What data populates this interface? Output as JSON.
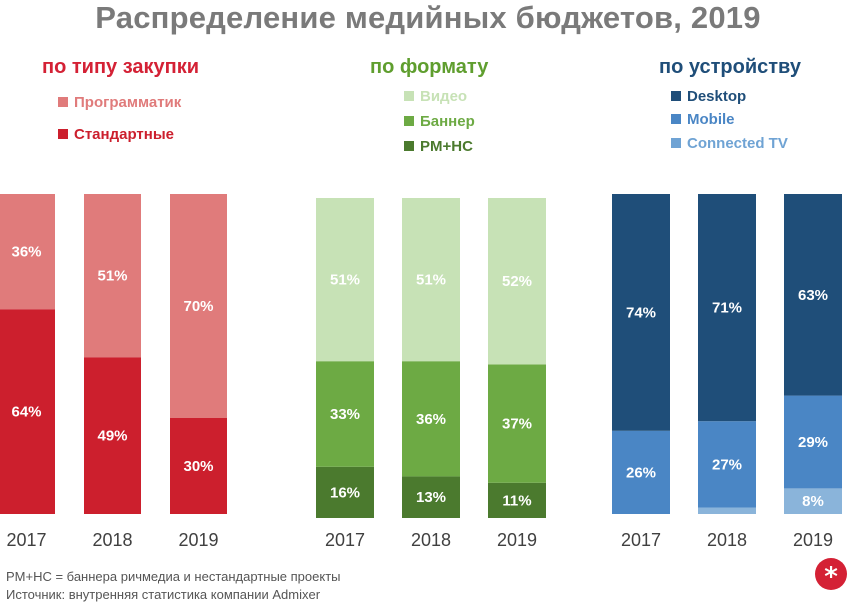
{
  "title": "Распределение медийных бюджетов, 2019",
  "footnotes": {
    "line1": "PM+HC = баннера ричмедиа и нестандартные проекты",
    "line2": "Источник: внутренняя статистика компании Admixer"
  },
  "logo_icon": "asterisk-icon",
  "chart_data": [
    {
      "type": "bar",
      "stacked": true,
      "title": "по типу закупки",
      "title_color": "#d42135",
      "categories": [
        "2017",
        "2018",
        "2019"
      ],
      "ylim": [
        0,
        100
      ],
      "series": [
        {
          "name": "Стандартные",
          "color": "#cc1f2d",
          "values": [
            64,
            49,
            30
          ],
          "labels": [
            "64%",
            "49%",
            "30%"
          ]
        },
        {
          "name": "Программатик",
          "color": "#e07b7b",
          "values": [
            36,
            51,
            70
          ],
          "labels": [
            "36%",
            "51%",
            "70%"
          ]
        }
      ],
      "legend": [
        {
          "name": "Программатик",
          "color": "#e07b7b"
        },
        {
          "name": "Стандартные",
          "color": "#cc1f2d"
        }
      ],
      "legend_position": "top-left"
    },
    {
      "type": "bar",
      "stacked": true,
      "title": "по формату",
      "title_color": "#5f9e2e",
      "categories": [
        "2017",
        "2018",
        "2019"
      ],
      "ylim": [
        0,
        100
      ],
      "series": [
        {
          "name": "PM+HC",
          "color": "#4b7a2e",
          "values": [
            16,
            13,
            11
          ],
          "labels": [
            "16%",
            "13%",
            "11%"
          ]
        },
        {
          "name": "Баннер",
          "color": "#6daa44",
          "values": [
            33,
            36,
            37
          ],
          "labels": [
            "33%",
            "36%",
            "37%"
          ]
        },
        {
          "name": "Видео",
          "color": "#c7e2b6",
          "values": [
            51,
            51,
            52
          ],
          "labels": [
            "51%",
            "51%",
            "52%"
          ]
        }
      ],
      "legend": [
        {
          "name": "Видео",
          "color": "#c7e2b6"
        },
        {
          "name": "Баннер",
          "color": "#6daa44"
        },
        {
          "name": "PM+HC",
          "color": "#4b7a2e"
        }
      ],
      "legend_position": "top-left"
    },
    {
      "type": "bar",
      "stacked": true,
      "title": "по устройству",
      "title_color": "#1f4e79",
      "categories": [
        "2017",
        "2018",
        "2019"
      ],
      "ylim": [
        0,
        100
      ],
      "series": [
        {
          "name": "Connected TV",
          "color": "#8ab4da",
          "values": [
            0,
            2,
            8
          ],
          "labels": [
            "",
            "",
            "8%"
          ]
        },
        {
          "name": "Mobile",
          "color": "#4a86c5",
          "values": [
            26,
            27,
            29
          ],
          "labels": [
            "26%",
            "27%",
            "29%"
          ]
        },
        {
          "name": "Desktop",
          "color": "#1f4e79",
          "values": [
            74,
            71,
            63
          ],
          "labels": [
            "74%",
            "71%",
            "63%"
          ]
        }
      ],
      "legend": [
        {
          "name": "Desktop",
          "color": "#1f4e79"
        },
        {
          "name": "Mobile",
          "color": "#4a86c5"
        },
        {
          "name": "Connected TV",
          "color": "#6fa3d4"
        }
      ],
      "legend_position": "top-left"
    }
  ]
}
